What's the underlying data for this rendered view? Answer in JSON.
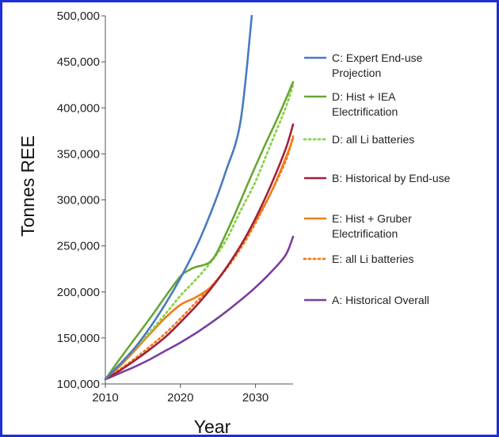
{
  "chart_data": {
    "type": "line",
    "title": "",
    "xlabel": "Year",
    "ylabel": "Tonnes REE",
    "xlim": [
      2010,
      2035
    ],
    "ylim": [
      100000,
      500000
    ],
    "x_ticks": [
      2010,
      2020,
      2030
    ],
    "x_tick_labels": [
      "2010",
      "2020",
      "2030"
    ],
    "y_ticks": [
      100000,
      150000,
      200000,
      250000,
      300000,
      350000,
      400000,
      450000,
      500000
    ],
    "y_tick_labels": [
      "100,000",
      "150,000",
      "200,000",
      "250,000",
      "300,000",
      "350,000",
      "400,000",
      "450,000",
      "500,000"
    ],
    "grid": false,
    "legend_position": "right",
    "series": [
      {
        "name": "C: Expert End-use Projection",
        "legend_lines": [
          "C: Expert End-use",
          "Projection"
        ],
        "color": "#4a7abf",
        "dash": "solid",
        "x": [
          2010,
          2012,
          2014,
          2016,
          2018,
          2020,
          2022,
          2024,
          2026,
          2028,
          2029.5
        ],
        "y": [
          105000,
          122000,
          140000,
          162000,
          187000,
          215000,
          247000,
          285000,
          330000,
          385000,
          500000
        ]
      },
      {
        "name": "D: Hist + IEA Electrification",
        "legend_lines": [
          "D: Hist + IEA",
          "Electrification"
        ],
        "color": "#6aa535",
        "dash": "solid",
        "x": [
          2010,
          2012,
          2014,
          2016,
          2018,
          2020,
          2021,
          2022,
          2023,
          2024,
          2025,
          2027,
          2029,
          2031,
          2033,
          2035
        ],
        "y": [
          105000,
          128000,
          150000,
          172000,
          195000,
          217000,
          223000,
          227000,
          229000,
          233000,
          245000,
          280000,
          318000,
          355000,
          390000,
          428000
        ]
      },
      {
        "name": "D: all Li batteries",
        "legend_lines": [
          "D: all Li batteries"
        ],
        "color": "#8cd14a",
        "dash": "dotted",
        "x": [
          2010,
          2012,
          2014,
          2016,
          2018,
          2020,
          2022,
          2024,
          2026,
          2028,
          2030,
          2032,
          2034,
          2035
        ],
        "y": [
          105000,
          122000,
          139000,
          157000,
          176000,
          196000,
          213000,
          232000,
          255000,
          288000,
          320000,
          360000,
          400000,
          425000
        ]
      },
      {
        "name": "B: Historical by End-use",
        "legend_lines": [
          "B: Historical by End-use"
        ],
        "color": "#a3203a",
        "dash": "solid",
        "x": [
          2010,
          2012,
          2014,
          2016,
          2018,
          2020,
          2022,
          2024,
          2026,
          2028,
          2030,
          2032,
          2034,
          2035
        ],
        "y": [
          105000,
          115000,
          126000,
          138000,
          151000,
          167000,
          184000,
          203000,
          225000,
          250000,
          280000,
          315000,
          355000,
          382000
        ]
      },
      {
        "name": "E: Hist + Gruber Electrification",
        "legend_lines": [
          "E: Hist + Gruber",
          "Electrification"
        ],
        "color": "#f07d1a",
        "dash": "solid",
        "x": [
          2010,
          2012,
          2014,
          2016,
          2018,
          2020,
          2022,
          2024,
          2026,
          2028,
          2030,
          2032,
          2034,
          2035
        ],
        "y": [
          105000,
          120000,
          137000,
          155000,
          172000,
          186000,
          194000,
          205000,
          225000,
          250000,
          277000,
          307000,
          345000,
          367000
        ]
      },
      {
        "name": "E: all Li batteries",
        "legend_lines": [
          "E: all Li batteries"
        ],
        "color": "#f07d1a",
        "dash": "dotted",
        "x": [
          2010,
          2012,
          2014,
          2016,
          2018,
          2020,
          2022,
          2024,
          2026,
          2028,
          2030,
          2032,
          2034,
          2035
        ],
        "y": [
          105000,
          116000,
          128000,
          141000,
          155000,
          171000,
          188000,
          205000,
          224000,
          247000,
          275000,
          307000,
          342000,
          369000
        ]
      },
      {
        "name": "A: Historical Overall",
        "legend_lines": [
          "A: Historical Overall"
        ],
        "color": "#7a3f9e",
        "dash": "solid",
        "x": [
          2010,
          2012,
          2014,
          2016,
          2018,
          2020,
          2022,
          2024,
          2026,
          2028,
          2030,
          2032,
          2034,
          2035
        ],
        "y": [
          105000,
          112000,
          119000,
          127000,
          136000,
          145000,
          155000,
          166000,
          178000,
          191000,
          205000,
          221000,
          240000,
          260000
        ]
      }
    ]
  }
}
